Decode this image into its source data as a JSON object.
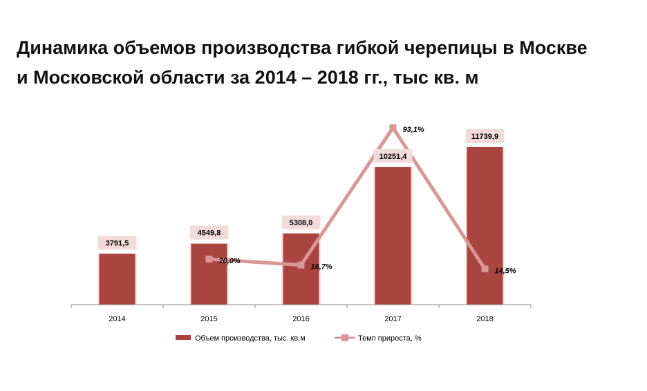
{
  "title": {
    "line1": "Динамика объемов производства гибкой черепицы в Москве",
    "line2": "и Московской области за 2014 – 2018 гг., тыс кв. м"
  },
  "colors": {
    "bar": "#a9443f",
    "line": "#d99694",
    "label_bg": "#f2dcdb",
    "axis": "#888888"
  },
  "chart_data": {
    "type": "bar",
    "categories": [
      "2014",
      "2015",
      "2016",
      "2017",
      "2018"
    ],
    "series": [
      {
        "name": "Объем производства,  тыс. кв.м",
        "type": "bar",
        "values": [
          3791.5,
          4549.8,
          5308.0,
          10251.4,
          11739.9
        ],
        "labels": [
          "3791,5",
          "4549,8",
          "5308,0",
          "10251,4",
          "11739,9"
        ]
      },
      {
        "name": "Темп прироста, %",
        "type": "line",
        "x": [
          "2015",
          "2016",
          "2017",
          "2018"
        ],
        "values": [
          20.0,
          16.7,
          93.1,
          14.5
        ],
        "labels": [
          "20,0%",
          "16,7%",
          "93,1%",
          "14,5%"
        ]
      }
    ],
    "legend_position": "bottom",
    "grid": false
  }
}
